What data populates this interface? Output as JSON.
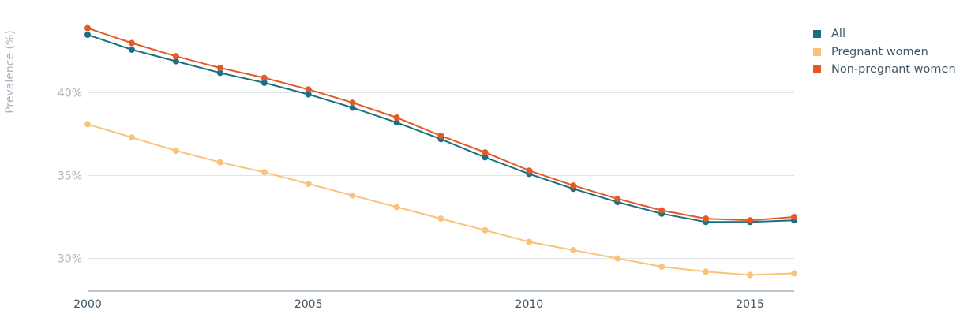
{
  "chart_data": {
    "type": "line",
    "ylabel": "Prevalence (%)",
    "xlabel": "",
    "title": "",
    "x": [
      2000,
      2001,
      2002,
      2003,
      2004,
      2005,
      2006,
      2007,
      2008,
      2009,
      2010,
      2011,
      2012,
      2013,
      2014,
      2015,
      2016
    ],
    "xlim": [
      2000,
      2016
    ],
    "ylim": [
      28,
      44.5
    ],
    "x_ticks": [
      2000,
      2005,
      2010,
      2015
    ],
    "x_tick_labels": [
      "2000",
      "2005",
      "2010",
      "2015"
    ],
    "y_ticks": [
      30,
      35,
      40
    ],
    "y_tick_labels": [
      "30%",
      "35%",
      "40%"
    ],
    "grid": "horizontal",
    "legend_position": "top-right",
    "series": [
      {
        "name": "All",
        "color": "#1a6f82",
        "values": [
          43.5,
          42.6,
          41.9,
          41.2,
          40.6,
          39.9,
          39.1,
          38.2,
          37.2,
          36.1,
          35.1,
          34.2,
          33.4,
          32.7,
          32.2,
          32.2,
          32.3
        ]
      },
      {
        "name": "Pregnant women",
        "color": "#f9c37c",
        "values": [
          38.1,
          37.3,
          36.5,
          35.8,
          35.2,
          34.5,
          33.8,
          33.1,
          32.4,
          31.7,
          31.0,
          30.5,
          30.0,
          29.5,
          29.2,
          29.0,
          29.1
        ]
      },
      {
        "name": "Non-pregnant women",
        "color": "#e35a26",
        "values": [
          43.9,
          43.0,
          42.2,
          41.5,
          40.9,
          40.2,
          39.4,
          38.5,
          37.4,
          36.4,
          35.3,
          34.4,
          33.6,
          32.9,
          32.4,
          32.3,
          32.5
        ]
      }
    ]
  }
}
